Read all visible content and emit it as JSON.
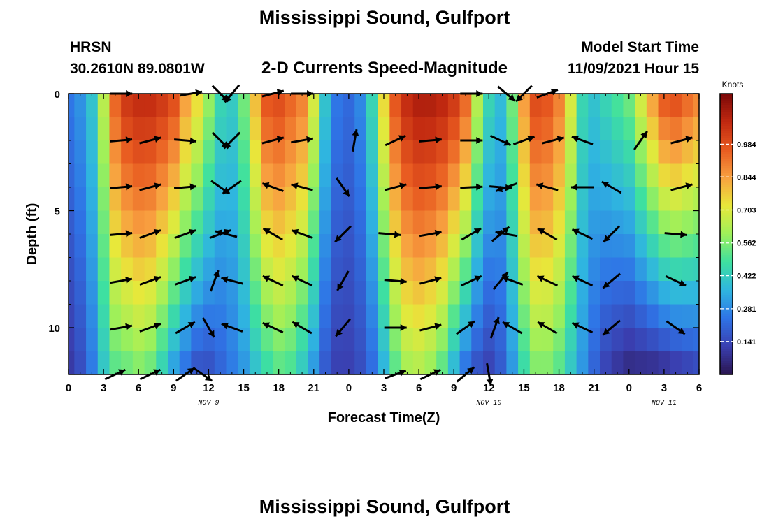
{
  "header": {
    "title": "Mississippi Sound, Gulfport",
    "station": "HRSN",
    "coords": "30.2610N  89.0801W",
    "subtitle": "2-D Currents Speed-Magnitude",
    "model_start_label": "Model Start Time",
    "model_start_value": "11/09/2021 Hour 15",
    "footer_title": "Mississippi Sound, Gulfport"
  },
  "colors": {
    "scale": [
      "#2a1550",
      "#3a3fb0",
      "#2f73e6",
      "#2fb5e0",
      "#3ee0a0",
      "#9ef05a",
      "#e8e83a",
      "#f8a040",
      "#e85a20",
      "#c02810",
      "#7a0808"
    ],
    "arrow": "#000000"
  },
  "chart_data": {
    "type": "heatmap",
    "title": "2-D Currents Speed-Magnitude",
    "xlabel": "Forecast Time(Z)",
    "ylabel": "Depth (ft)",
    "x_range_hours": [
      0,
      54
    ],
    "x_ticks": [
      {
        "h": 0,
        "label": "0"
      },
      {
        "h": 3,
        "label": "3"
      },
      {
        "h": 6,
        "label": "6"
      },
      {
        "h": 9,
        "label": "9"
      },
      {
        "h": 12,
        "label": "12"
      },
      {
        "h": 15,
        "label": "15"
      },
      {
        "h": 18,
        "label": "18"
      },
      {
        "h": 21,
        "label": "21"
      },
      {
        "h": 24,
        "label": "0"
      },
      {
        "h": 27,
        "label": "3"
      },
      {
        "h": 30,
        "label": "6"
      },
      {
        "h": 33,
        "label": "9"
      },
      {
        "h": 36,
        "label": "12"
      },
      {
        "h": 39,
        "label": "15"
      },
      {
        "h": 42,
        "label": "18"
      },
      {
        "h": 45,
        "label": "21"
      },
      {
        "h": 48,
        "label": "0"
      },
      {
        "h": 51,
        "label": "3"
      },
      {
        "h": 54,
        "label": "6"
      }
    ],
    "date_labels": [
      {
        "h": 12,
        "label": "NOV 9"
      },
      {
        "h": 36,
        "label": "NOV 10"
      },
      {
        "h": 51,
        "label": "NOV 11"
      }
    ],
    "y_range_ft": [
      0,
      12
    ],
    "y_ticks": [
      {
        "v": 0,
        "label": "0"
      },
      {
        "v": 5,
        "label": "5"
      },
      {
        "v": 10,
        "label": "10"
      }
    ],
    "colorbar": {
      "label": "Knots",
      "min": 0,
      "max": 1.2,
      "ticks": [
        0.984,
        0.844,
        0.703,
        0.562,
        0.422,
        0.281,
        0.141
      ],
      "tick_labels": [
        "0.984",
        "0.844",
        "0.703",
        "0.562",
        "0.422",
        "0.281",
        "0.141"
      ]
    },
    "depth_levels_ft": [
      0,
      2,
      4,
      6,
      8,
      10,
      12
    ],
    "speed_profile": {
      "hours": [
        0,
        1,
        2,
        3,
        4,
        5,
        6,
        7,
        8,
        9,
        10,
        11,
        12,
        13,
        14,
        15,
        16,
        17,
        18,
        19,
        20,
        21,
        22,
        23,
        24,
        25,
        26,
        27,
        28,
        29,
        30,
        31,
        32,
        33,
        34,
        35,
        36,
        37,
        38,
        39,
        40,
        41,
        42,
        43,
        44,
        45,
        46,
        47,
        48,
        49,
        50,
        51,
        52,
        53,
        54
      ],
      "surface_knots": [
        0.25,
        0.3,
        0.4,
        0.65,
        0.95,
        1.05,
        1.08,
        1.08,
        1.05,
        1.0,
        0.85,
        0.75,
        0.6,
        0.45,
        0.42,
        0.55,
        0.8,
        0.98,
        1.0,
        0.95,
        0.9,
        0.7,
        0.4,
        0.25,
        0.22,
        0.28,
        0.45,
        0.75,
        0.98,
        1.08,
        1.12,
        1.12,
        1.1,
        1.05,
        0.95,
        0.65,
        0.45,
        0.38,
        0.55,
        0.85,
        1.0,
        0.98,
        0.9,
        0.7,
        0.45,
        0.4,
        0.45,
        0.5,
        0.55,
        0.7,
        0.85,
        0.98,
        1.0,
        0.95,
        0.9
      ],
      "bottom_knots": [
        0.1,
        0.15,
        0.25,
        0.4,
        0.5,
        0.52,
        0.55,
        0.52,
        0.42,
        0.3,
        0.22,
        0.15,
        0.15,
        0.2,
        0.25,
        0.3,
        0.38,
        0.45,
        0.5,
        0.48,
        0.4,
        0.3,
        0.18,
        0.12,
        0.12,
        0.15,
        0.22,
        0.35,
        0.5,
        0.6,
        0.62,
        0.58,
        0.5,
        0.35,
        0.22,
        0.15,
        0.12,
        0.18,
        0.3,
        0.45,
        0.55,
        0.55,
        0.5,
        0.4,
        0.3,
        0.2,
        0.12,
        0.08,
        0.05,
        0.05,
        0.05,
        0.06,
        0.08,
        0.1,
        0.12
      ]
    },
    "vectors": [
      {
        "h": 4.5,
        "d": 0,
        "dir": 0
      },
      {
        "h": 10.5,
        "d": 0,
        "dir": -10
      },
      {
        "h": 13,
        "d": 0,
        "dir": 45
      },
      {
        "h": 14,
        "d": 0,
        "dir": 130
      },
      {
        "h": 17.5,
        "d": 0,
        "dir": -15
      },
      {
        "h": 20,
        "d": 0,
        "dir": 0
      },
      {
        "h": 34.5,
        "d": 0,
        "dir": 0
      },
      {
        "h": 37.5,
        "d": 0,
        "dir": 40
      },
      {
        "h": 39,
        "d": 0,
        "dir": 135
      },
      {
        "h": 41,
        "d": 0,
        "dir": -20
      },
      {
        "h": 4.5,
        "d": 2,
        "dir": -5
      },
      {
        "h": 7,
        "d": 2,
        "dir": -15
      },
      {
        "h": 10,
        "d": 2,
        "dir": 5
      },
      {
        "h": 13,
        "d": 2,
        "dir": 45
      },
      {
        "h": 14,
        "d": 2,
        "dir": 135
      },
      {
        "h": 17.5,
        "d": 2,
        "dir": -15
      },
      {
        "h": 20,
        "d": 2,
        "dir": -10
      },
      {
        "h": 24.5,
        "d": 2,
        "dir": -80
      },
      {
        "h": 28,
        "d": 2,
        "dir": -25
      },
      {
        "h": 31,
        "d": 2,
        "dir": -5
      },
      {
        "h": 34.5,
        "d": 2,
        "dir": 0
      },
      {
        "h": 37,
        "d": 2,
        "dir": 25
      },
      {
        "h": 39,
        "d": 2,
        "dir": -20
      },
      {
        "h": 41.5,
        "d": 2,
        "dir": -15
      },
      {
        "h": 44,
        "d": 2,
        "dir": 200
      },
      {
        "h": 49,
        "d": 2,
        "dir": -55
      },
      {
        "h": 52.5,
        "d": 2,
        "dir": -15
      },
      {
        "h": 4.5,
        "d": 4,
        "dir": -5
      },
      {
        "h": 7,
        "d": 4,
        "dir": -15
      },
      {
        "h": 10,
        "d": 4,
        "dir": -5
      },
      {
        "h": 13,
        "d": 4,
        "dir": 35
      },
      {
        "h": 14,
        "d": 4,
        "dir": 145
      },
      {
        "h": 17.5,
        "d": 4,
        "dir": 200
      },
      {
        "h": 20,
        "d": 4,
        "dir": 195
      },
      {
        "h": 23.5,
        "d": 4,
        "dir": 55
      },
      {
        "h": 28,
        "d": 4,
        "dir": -15
      },
      {
        "h": 31,
        "d": 4,
        "dir": -5
      },
      {
        "h": 34.5,
        "d": 4,
        "dir": -3
      },
      {
        "h": 37,
        "d": 4,
        "dir": 5
      },
      {
        "h": 37.5,
        "d": 4,
        "dir": 160
      },
      {
        "h": 41,
        "d": 4,
        "dir": 195
      },
      {
        "h": 44,
        "d": 4,
        "dir": 180
      },
      {
        "h": 46.5,
        "d": 4,
        "dir": 210
      },
      {
        "h": 52.5,
        "d": 4,
        "dir": -15
      },
      {
        "h": 4.5,
        "d": 6,
        "dir": -5
      },
      {
        "h": 7,
        "d": 6,
        "dir": -20
      },
      {
        "h": 10,
        "d": 6,
        "dir": -20
      },
      {
        "h": 13,
        "d": 6,
        "dir": -20
      },
      {
        "h": 13.5,
        "d": 6,
        "dir": 195
      },
      {
        "h": 17.5,
        "d": 6,
        "dir": 210
      },
      {
        "h": 20,
        "d": 6,
        "dir": 200
      },
      {
        "h": 23.5,
        "d": 6,
        "dir": 135
      },
      {
        "h": 27.5,
        "d": 6,
        "dir": 5
      },
      {
        "h": 31,
        "d": 6,
        "dir": -10
      },
      {
        "h": 34.5,
        "d": 6,
        "dir": -30
      },
      {
        "h": 37,
        "d": 6,
        "dir": -40
      },
      {
        "h": 37.5,
        "d": 6,
        "dir": 190
      },
      {
        "h": 41,
        "d": 6,
        "dir": 210
      },
      {
        "h": 44,
        "d": 6,
        "dir": 205
      },
      {
        "h": 46.5,
        "d": 6,
        "dir": 135
      },
      {
        "h": 52,
        "d": 6,
        "dir": 5
      },
      {
        "h": 4.5,
        "d": 8,
        "dir": -10
      },
      {
        "h": 7,
        "d": 8,
        "dir": -20
      },
      {
        "h": 10,
        "d": 8,
        "dir": -20
      },
      {
        "h": 12.5,
        "d": 8,
        "dir": -70
      },
      {
        "h": 14,
        "d": 8,
        "dir": 195
      },
      {
        "h": 17.5,
        "d": 8,
        "dir": 205
      },
      {
        "h": 20,
        "d": 8,
        "dir": 205
      },
      {
        "h": 23.5,
        "d": 8,
        "dir": 120
      },
      {
        "h": 28,
        "d": 8,
        "dir": 5
      },
      {
        "h": 31,
        "d": 8,
        "dir": -15
      },
      {
        "h": 34.5,
        "d": 8,
        "dir": -25
      },
      {
        "h": 37,
        "d": 8,
        "dir": -50
      },
      {
        "h": 38,
        "d": 8,
        "dir": 200
      },
      {
        "h": 41,
        "d": 8,
        "dir": 205
      },
      {
        "h": 44,
        "d": 8,
        "dir": 205
      },
      {
        "h": 46.5,
        "d": 8,
        "dir": 140
      },
      {
        "h": 52,
        "d": 8,
        "dir": 25
      },
      {
        "h": 4.5,
        "d": 10,
        "dir": -10
      },
      {
        "h": 7,
        "d": 10,
        "dir": -20
      },
      {
        "h": 10,
        "d": 10,
        "dir": -30
      },
      {
        "h": 12,
        "d": 10,
        "dir": 60
      },
      {
        "h": 14,
        "d": 10,
        "dir": 200
      },
      {
        "h": 17.5,
        "d": 10,
        "dir": 205
      },
      {
        "h": 20,
        "d": 10,
        "dir": 210
      },
      {
        "h": 23.5,
        "d": 10,
        "dir": 130
      },
      {
        "h": 28,
        "d": 10,
        "dir": 0
      },
      {
        "h": 31,
        "d": 10,
        "dir": -15
      },
      {
        "h": 34,
        "d": 10,
        "dir": -35
      },
      {
        "h": 36.5,
        "d": 10,
        "dir": -70
      },
      {
        "h": 38,
        "d": 10,
        "dir": 210
      },
      {
        "h": 41,
        "d": 10,
        "dir": 210
      },
      {
        "h": 44,
        "d": 10,
        "dir": 205
      },
      {
        "h": 46.5,
        "d": 10,
        "dir": 140
      },
      {
        "h": 52,
        "d": 10,
        "dir": 35
      },
      {
        "h": 4,
        "d": 12,
        "dir": -25
      },
      {
        "h": 7,
        "d": 12,
        "dir": -25
      },
      {
        "h": 10,
        "d": 12,
        "dir": -35
      },
      {
        "h": 11.5,
        "d": 12,
        "dir": 35
      },
      {
        "h": 28,
        "d": 12,
        "dir": -20
      },
      {
        "h": 31,
        "d": 12,
        "dir": -25
      },
      {
        "h": 34,
        "d": 12,
        "dir": -40
      },
      {
        "h": 36,
        "d": 12,
        "dir": 80
      }
    ]
  }
}
